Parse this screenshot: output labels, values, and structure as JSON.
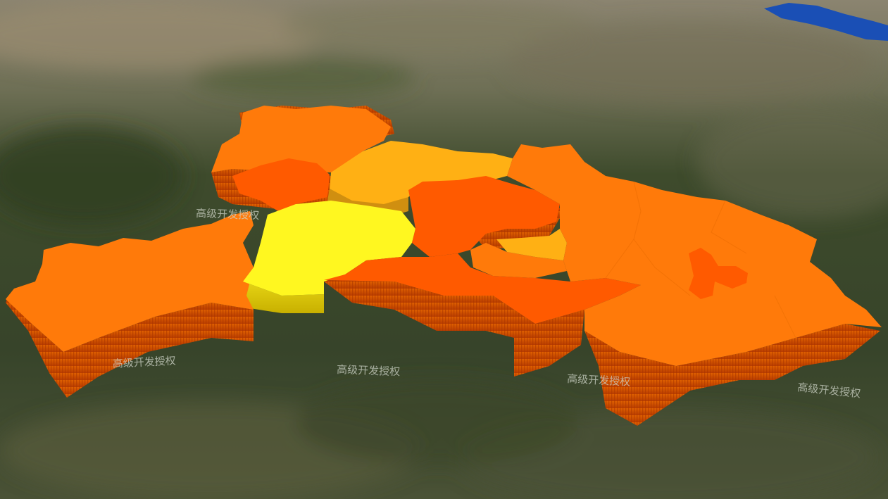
{
  "map": {
    "watermark_text": "高级开发授权",
    "colors": {
      "water": "#1a4fb5",
      "terrain_light": "#8a8068",
      "terrain_dark": "#2e3b22",
      "region_orange": "#ff7a0a",
      "region_deep": "#ff5a00",
      "region_amber": "#ffb014",
      "region_yellow": "#fff720",
      "wall_dark": "#c84600"
    }
  }
}
